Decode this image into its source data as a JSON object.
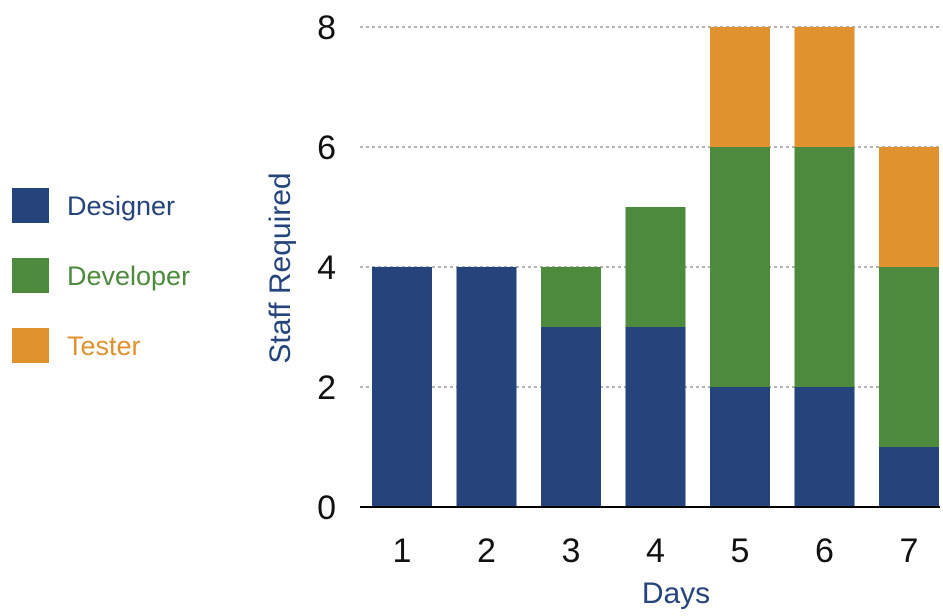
{
  "chart_data": {
    "type": "bar",
    "stacked": true,
    "categories": [
      "1",
      "2",
      "3",
      "4",
      "5",
      "6",
      "7"
    ],
    "series": [
      {
        "name": "Designer",
        "values": [
          4,
          4,
          3,
          3,
          2,
          2,
          1
        ],
        "color": "#25447b"
      },
      {
        "name": "Developer",
        "values": [
          0,
          0,
          1,
          2,
          4,
          4,
          3
        ],
        "color": "#4d8a3d"
      },
      {
        "name": "Tester",
        "values": [
          0,
          0,
          0,
          0,
          2,
          2,
          2
        ],
        "color": "#e0922f"
      }
    ],
    "xlabel": "Days",
    "ylabel": "Staff Required",
    "ylim": [
      0,
      8
    ],
    "yticks": [
      "0",
      "2",
      "4",
      "6",
      "8"
    ],
    "grid": true,
    "legend_position": "left"
  },
  "colors": {
    "xlabel": "#25447b",
    "ylabel": "#25447b",
    "tick_text": "#111111",
    "grid": "#9a9a9a",
    "axis": "#000000"
  }
}
